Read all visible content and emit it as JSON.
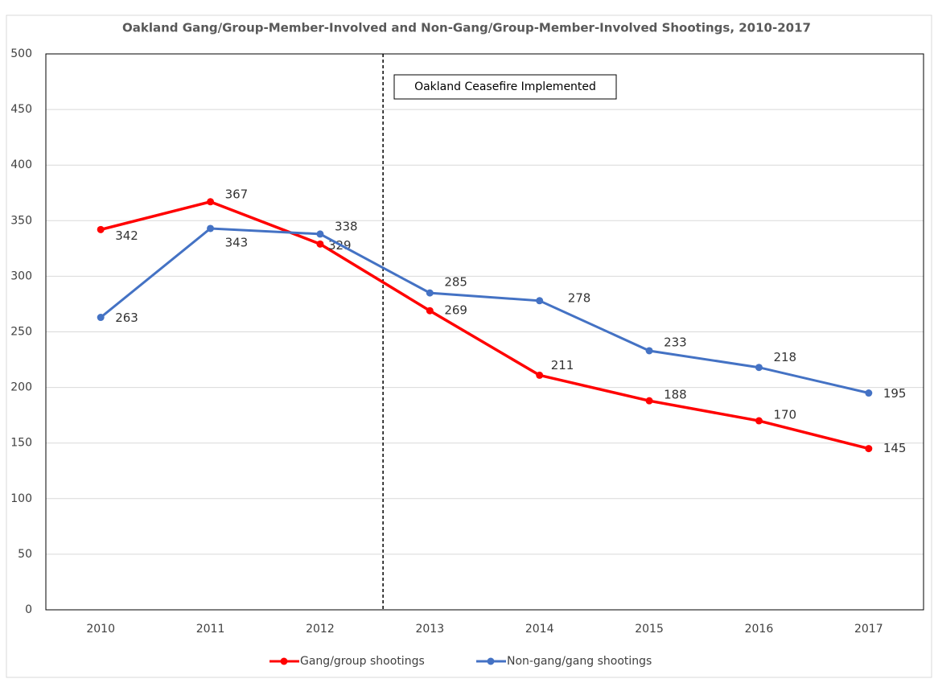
{
  "chart_data": {
    "type": "line",
    "title": "Oakland Gang/Group-Member-Involved and Non-Gang/Group-Member-Involved Shootings, 2010-2017",
    "annotation": "Oakland Ceasefire Implemented",
    "categories": [
      "2010",
      "2011",
      "2012",
      "2013",
      "2014",
      "2015",
      "2016",
      "2017"
    ],
    "series": [
      {
        "name": "Gang/group shootings",
        "color": "#ff0000",
        "values": [
          342,
          367,
          329,
          269,
          211,
          188,
          170,
          145
        ]
      },
      {
        "name": "Non-gang/gang shootings",
        "color": "#4472c4",
        "values": [
          263,
          343,
          338,
          285,
          278,
          233,
          218,
          195
        ]
      }
    ],
    "ylim": [
      0,
      500
    ],
    "yticks": [
      0,
      50,
      100,
      150,
      200,
      250,
      300,
      350,
      400,
      450,
      500
    ],
    "grid": true,
    "legend": "bottom"
  }
}
